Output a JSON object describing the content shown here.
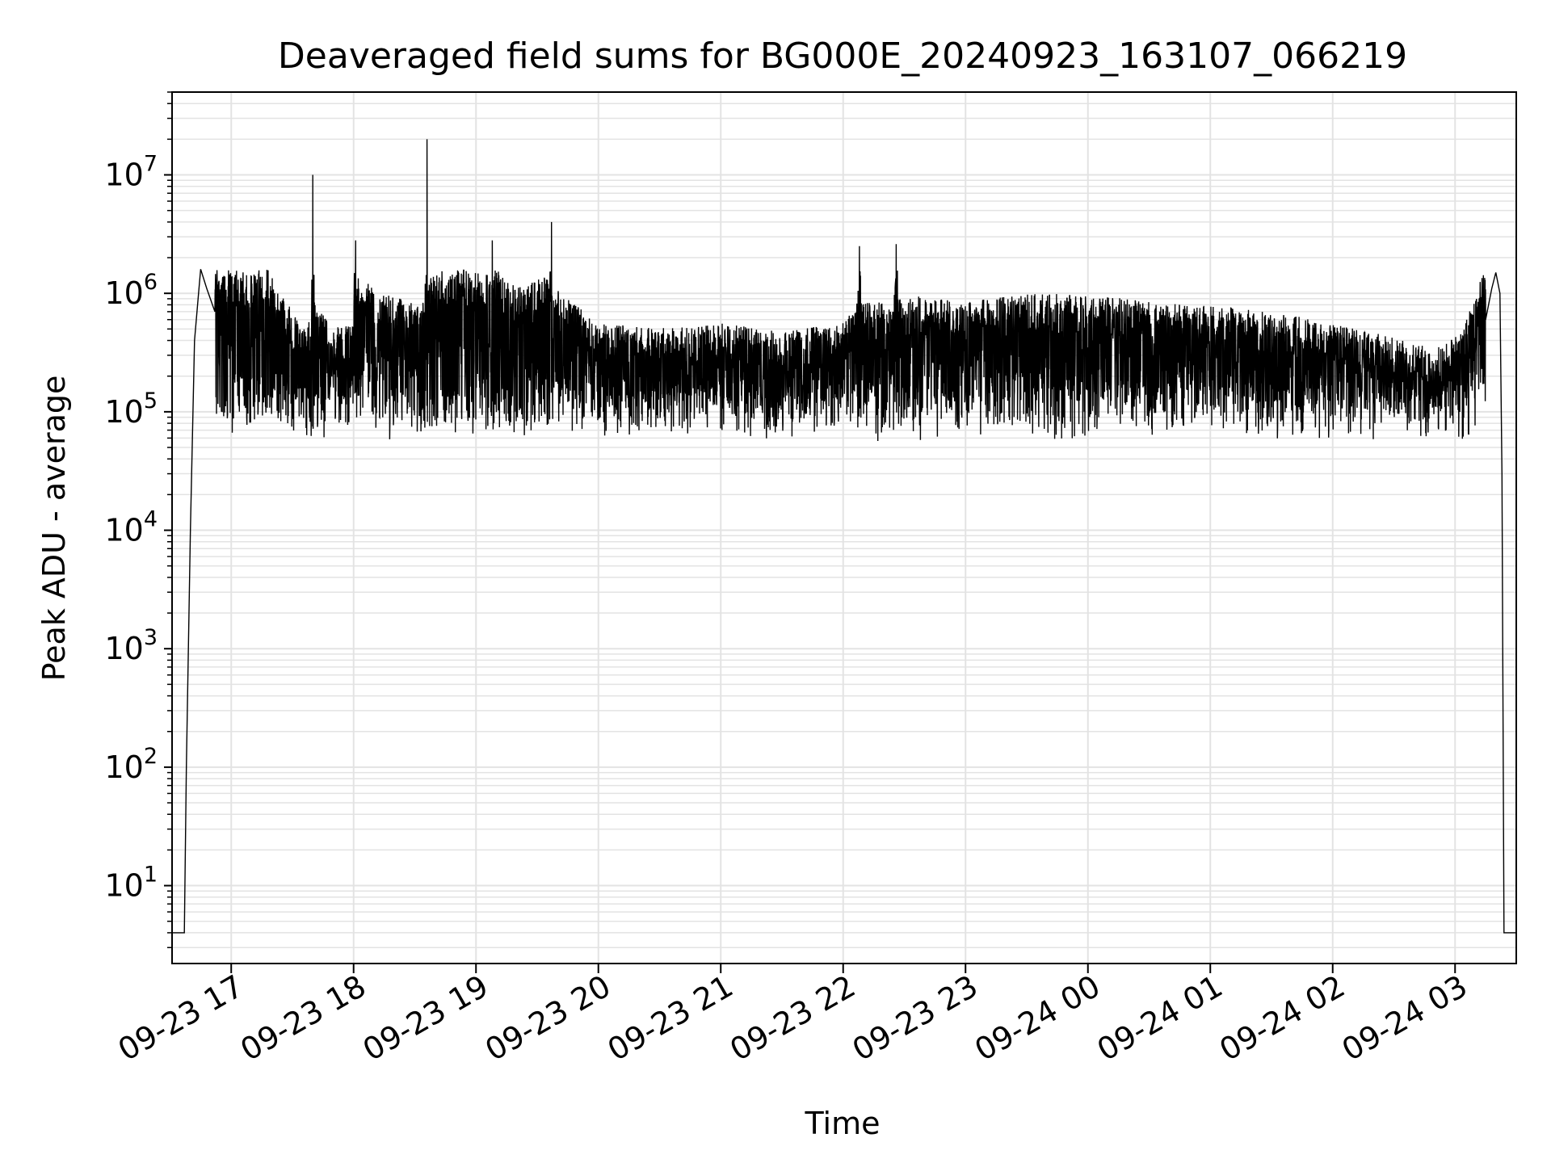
{
  "chart_data": {
    "type": "line",
    "title": "Deaveraged field sums for BG000E_20240923_163107_066219",
    "xlabel": "Time",
    "ylabel": "Peak ADU - average",
    "yscale": "log",
    "ylim": [
      2.2,
      50000000
    ],
    "xlim": [
      "2024-09-23 16:31",
      "2024-09-24 03:30"
    ],
    "grid": true,
    "line_color": "#000000",
    "grid_color": "#e3e3e3",
    "x_ticks": [
      "09-23 17",
      "09-23 18",
      "09-23 19",
      "09-23 20",
      "09-23 21",
      "09-23 22",
      "09-23 23",
      "09-24 00",
      "09-24 01",
      "09-24 02",
      "09-24 03"
    ],
    "y_ticks": [
      {
        "base": "10",
        "exp": "1"
      },
      {
        "base": "10",
        "exp": "2"
      },
      {
        "base": "10",
        "exp": "3"
      },
      {
        "base": "10",
        "exp": "4"
      },
      {
        "base": "10",
        "exp": "5"
      },
      {
        "base": "10",
        "exp": "6"
      },
      {
        "base": "10",
        "exp": "7"
      }
    ],
    "series": [
      {
        "x": [
          "2024-09-23 16:36",
          "2024-09-23 16:37",
          "2024-09-23 16:38",
          "2024-09-23 16:40",
          "2024-09-23 16:42",
          "2024-09-23 16:44",
          "2024-09-23 16:45",
          "2024-09-23 16:48",
          "2024-09-23 16:52",
          "2024-09-23 16:56",
          "2024-09-23 17:00",
          "2024-09-23 17:05",
          "2024-09-23 17:10",
          "2024-09-23 17:20",
          "2024-09-23 17:30",
          "2024-09-23 17:39",
          "2024-09-23 17:40",
          "2024-09-23 17:41",
          "2024-09-23 17:50",
          "2024-09-23 18:00",
          "2024-09-23 18:01",
          "2024-09-23 18:02",
          "2024-09-23 18:15",
          "2024-09-23 18:30",
          "2024-09-23 18:35",
          "2024-09-23 18:36",
          "2024-09-23 18:37",
          "2024-09-23 18:50",
          "2024-09-23 19:07",
          "2024-09-23 19:08",
          "2024-09-23 19:09",
          "2024-09-23 19:20",
          "2024-09-23 19:36",
          "2024-09-23 19:37",
          "2024-09-23 19:38",
          "2024-09-23 20:00",
          "2024-09-23 20:30",
          "2024-09-23 21:00",
          "2024-09-23 21:30",
          "2024-09-23 22:00",
          "2024-09-23 22:07",
          "2024-09-23 22:08",
          "2024-09-23 22:09",
          "2024-09-23 22:25",
          "2024-09-23 22:26",
          "2024-09-23 22:27",
          "2024-09-23 23:00",
          "2024-09-23 23:30",
          "2024-09-24 00:00",
          "2024-09-24 00:30",
          "2024-09-24 01:00",
          "2024-09-24 01:30",
          "2024-09-24 02:00",
          "2024-09-24 02:30",
          "2024-09-24 02:50",
          "2024-09-24 03:00",
          "2024-09-24 03:05",
          "2024-09-24 03:10",
          "2024-09-24 03:15",
          "2024-09-24 03:18",
          "2024-09-24 03:20",
          "2024-09-24 03:22",
          "2024-09-24 03:23",
          "2024-09-24 03:24",
          "2024-09-24 03:25"
        ],
        "values": [
          4,
          4,
          100,
          10000,
          400000,
          1000000,
          1600000,
          1100000,
          700000,
          900000,
          600000,
          800000,
          1000000,
          500000,
          250000,
          200000,
          10000000,
          300000,
          180000,
          200000,
          2800000,
          500000,
          350000,
          300000,
          400000,
          20000000,
          500000,
          600000,
          500000,
          2800000,
          600000,
          400000,
          500000,
          4000000,
          400000,
          200000,
          180000,
          200000,
          170000,
          200000,
          300000,
          2500000,
          300000,
          300000,
          2600000,
          350000,
          300000,
          350000,
          350000,
          300000,
          280000,
          250000,
          200000,
          150000,
          120000,
          150000,
          200000,
          350000,
          600000,
          1100000,
          1500000,
          1000000,
          30000,
          4,
          4
        ]
      }
    ]
  }
}
